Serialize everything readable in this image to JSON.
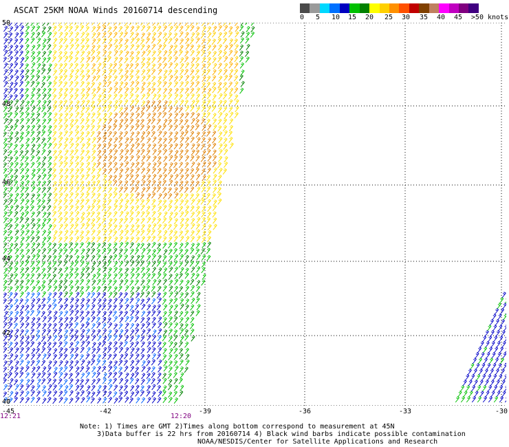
{
  "title": "ASCAT 25KM NOAA Winds 20160714 descending",
  "legend": {
    "colors": [
      "#4a4a4a",
      "#9a9a9a",
      "#00d8ff",
      "#0070ff",
      "#0000c0",
      "#00c000",
      "#008000",
      "#ffff00",
      "#ffd000",
      "#ff9000",
      "#ff5000",
      "#c00000",
      "#804000",
      "#c08060",
      "#ff00ff",
      "#c000c0",
      "#800080",
      "#400080"
    ],
    "labels": [
      "0",
      "5",
      "10",
      "15",
      "20",
      "25",
      "30",
      "35",
      "40",
      "45",
      ">50 knots"
    ]
  },
  "axes": {
    "lat_labels": [
      "50",
      "48",
      "46",
      "44",
      "42",
      "40"
    ],
    "lon_labels": [
      "-45",
      "-42",
      "-39",
      "-36",
      "-33",
      "-30"
    ],
    "time_labels": [
      "12:21",
      "12:20"
    ]
  },
  "notes": {
    "line1": "Note: 1) Times are GMT 2)Times along bottom correspond to measurement at 45N",
    "line2": "3)Data buffer is 22 hrs from 20160714 4) Black wind barbs indicate possible contamination",
    "line3": "NOAA/NESDIS/Center for Satellite Applications and Research"
  }
}
